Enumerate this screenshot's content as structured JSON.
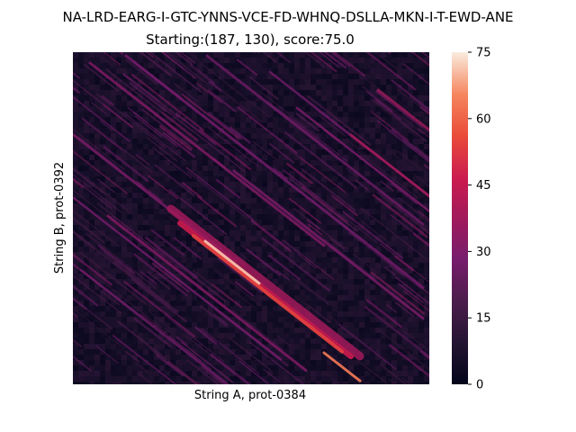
{
  "chart_data": {
    "type": "heatmap",
    "title": "NA-LRD-EARG-I-GTC-YNNS-VCE-FD-WHNQ-DSLLA-MKN-I-T-EWD-ANE",
    "subtitle": "Starting:(187, 130), score:75.0",
    "xlabel": "String A, prot-0384",
    "ylabel": "String B, prot-0392",
    "x_tick_labels": [],
    "y_tick_labels": [],
    "grid": false,
    "colormap": "rocket",
    "colorbar": {
      "range": [
        0,
        75
      ],
      "ticks": [
        0,
        15,
        30,
        45,
        60,
        75
      ],
      "tick_labels": [
        "0",
        "15",
        "30",
        "45",
        "60",
        "75"
      ]
    },
    "description_values": {
      "max_score": 75.0,
      "start_position": [
        187,
        130
      ]
    }
  }
}
